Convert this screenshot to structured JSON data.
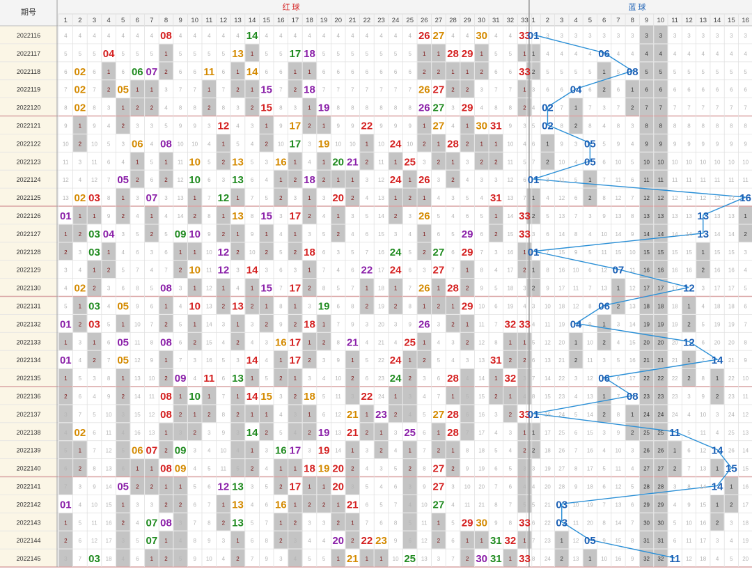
{
  "header": {
    "period_label": "期号",
    "red_label": "红 球",
    "blue_label": "蓝 球"
  },
  "colors": {
    "red_title": "#d42020",
    "blue_title": "#1a5fb4",
    "blue_line": "#2a8fd6",
    "row_bg": "#fbf6e6",
    "gray_cell": "#c4c4c4"
  },
  "chart_data": {
    "type": "table",
    "red_columns": [
      "1",
      "2",
      "3",
      "4",
      "5",
      "6",
      "7",
      "8",
      "9",
      "10",
      "11",
      "12",
      "13",
      "14",
      "15",
      "16",
      "17",
      "18",
      "19",
      "20",
      "21",
      "22",
      "23",
      "24",
      "25",
      "26",
      "27",
      "28",
      "29",
      "30",
      "31",
      "32",
      "33"
    ],
    "blue_columns": [
      "1",
      "2",
      "3",
      "4",
      "5",
      "6",
      "7",
      "8",
      "9",
      "10",
      "11",
      "12",
      "13",
      "14",
      "15",
      "16"
    ],
    "rows": [
      {
        "period": "2022116",
        "red": [
          "08",
          "14",
          "26",
          "27",
          "30",
          "33"
        ],
        "blue": "01"
      },
      {
        "period": "2022117",
        "red": [
          "04",
          "13",
          "17",
          "18",
          "28",
          "29"
        ],
        "blue": "06"
      },
      {
        "period": "2022118",
        "red": [
          "02",
          "06",
          "07",
          "11",
          "14",
          "33"
        ],
        "blue": "08"
      },
      {
        "period": "2022119",
        "red": [
          "02",
          "05",
          "15",
          "18",
          "26",
          "27"
        ],
        "blue": "04"
      },
      {
        "period": "2022120",
        "red": [
          "02",
          "15",
          "19",
          "26",
          "27",
          "29"
        ],
        "blue": "02"
      },
      {
        "period": "2022121",
        "red": [
          "12",
          "17",
          "22",
          "27",
          "30",
          "31"
        ],
        "blue": "02"
      },
      {
        "period": "2022122",
        "red": [
          "06",
          "08",
          "17",
          "19",
          "24",
          "28"
        ],
        "blue": "05"
      },
      {
        "period": "2022123",
        "red": [
          "10",
          "13",
          "16",
          "20",
          "21",
          "25"
        ],
        "blue": "05"
      },
      {
        "period": "2022124",
        "red": [
          "05",
          "10",
          "13",
          "18",
          "24",
          "26"
        ],
        "blue": "01"
      },
      {
        "period": "2022125",
        "red": [
          "02",
          "03",
          "07",
          "12",
          "20",
          "31"
        ],
        "blue": "16"
      },
      {
        "period": "2022126",
        "red": [
          "01",
          "13",
          "15",
          "17",
          "26",
          "33"
        ],
        "blue": "13"
      },
      {
        "period": "2022127",
        "red": [
          "03",
          "04",
          "09",
          "10",
          "29",
          "33"
        ],
        "blue": "13"
      },
      {
        "period": "2022128",
        "red": [
          "03",
          "12",
          "18",
          "24",
          "27",
          "29"
        ],
        "blue": "01"
      },
      {
        "period": "2022129",
        "red": [
          "10",
          "12",
          "14",
          "22",
          "24",
          "27"
        ],
        "blue": "07"
      },
      {
        "period": "2022130",
        "red": [
          "02",
          "08",
          "15",
          "17",
          "26",
          "28"
        ],
        "blue": "12"
      },
      {
        "period": "2022131",
        "red": [
          "03",
          "05",
          "10",
          "13",
          "19",
          "29"
        ],
        "blue": "06"
      },
      {
        "period": "2022132",
        "red": [
          "01",
          "03",
          "18",
          "26",
          "32",
          "33"
        ],
        "blue": "04"
      },
      {
        "period": "2022133",
        "red": [
          "05",
          "08",
          "16",
          "17",
          "21",
          "25"
        ],
        "blue": "12"
      },
      {
        "period": "2022134",
        "red": [
          "01",
          "05",
          "14",
          "17",
          "24",
          "31"
        ],
        "blue": "14"
      },
      {
        "period": "2022135",
        "red": [
          "09",
          "11",
          "13",
          "24",
          "28",
          "32"
        ],
        "blue": "06"
      },
      {
        "period": "2022136",
        "red": [
          "08",
          "10",
          "14",
          "15",
          "18",
          "22"
        ],
        "blue": "08"
      },
      {
        "period": "2022137",
        "red": [
          "08",
          "21",
          "23",
          "27",
          "28",
          "33"
        ],
        "blue": "01"
      },
      {
        "period": "2022138",
        "red": [
          "02",
          "14",
          "19",
          "21",
          "25",
          "28"
        ],
        "blue": "11"
      },
      {
        "period": "2022139",
        "red": [
          "06",
          "07",
          "09",
          "16",
          "17",
          "19"
        ],
        "blue": "14"
      },
      {
        "period": "2022140",
        "red": [
          "08",
          "09",
          "18",
          "19",
          "20",
          "27"
        ],
        "blue": "15"
      },
      {
        "period": "2022141",
        "red": [
          "05",
          "12",
          "13",
          "17",
          "20",
          "27"
        ],
        "blue": "14"
      },
      {
        "period": "2022142",
        "red": [
          "01",
          "13",
          "16",
          "21",
          "27"
        ],
        "blue": "03"
      },
      {
        "period": "2022143",
        "red": [
          "07",
          "08",
          "13",
          "29",
          "30",
          "33"
        ],
        "blue": "03"
      },
      {
        "period": "2022144",
        "red": [
          "07",
          "20",
          "22",
          "23",
          "31",
          "32"
        ],
        "blue": "05"
      },
      {
        "period": "2022145",
        "red": [
          "03",
          "21",
          "25",
          "30",
          "31",
          "33"
        ],
        "blue": "11"
      }
    ]
  }
}
